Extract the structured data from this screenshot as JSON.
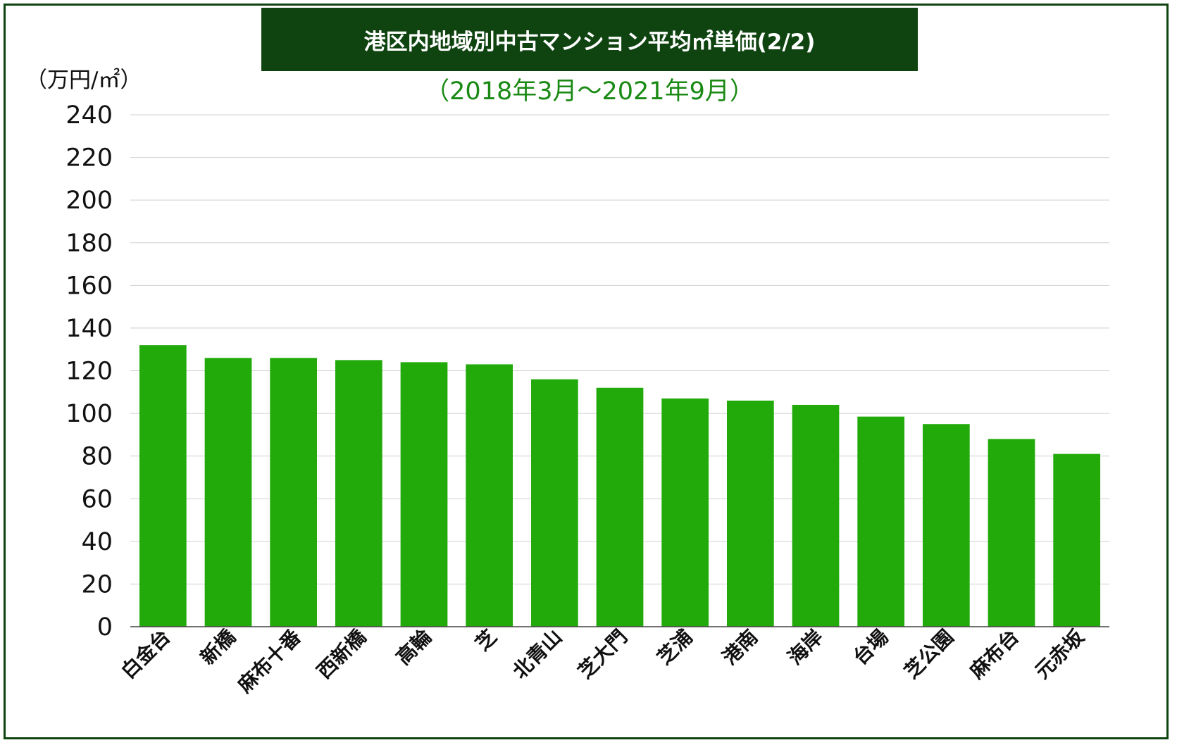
{
  "title": "港区内地域別中古マンション平均㎡単価(2/2)",
  "subtitle": "（2018年3月〜2021年9月）",
  "unit_label": "（万円/㎡）",
  "colors": {
    "frame": "#0f4411",
    "title_bg": "#0f4411",
    "subtitle_text": "#1a8a14",
    "bar": "#22aa0b",
    "grid": "#cfcfcf"
  },
  "chart_data": {
    "type": "bar",
    "title": "港区内地域別中古マンション平均㎡単価(2/2)",
    "subtitle": "（2018年3月〜2021年9月）",
    "ylabel": "（万円/㎡）",
    "xlabel": "",
    "ylim": [
      0,
      240
    ],
    "yticks": [
      0,
      20,
      40,
      60,
      80,
      100,
      120,
      140,
      160,
      180,
      200,
      220,
      240
    ],
    "grid": true,
    "legend": "none",
    "categories": [
      "白金台",
      "新橋",
      "麻布十番",
      "西新橋",
      "高輪",
      "芝",
      "北青山",
      "芝大門",
      "芝浦",
      "港南",
      "海岸",
      "台場",
      "芝公園",
      "麻布台",
      "元赤坂"
    ],
    "values": [
      132,
      126,
      126,
      125,
      124,
      123,
      116,
      112,
      107,
      106,
      104,
      98.5,
      95,
      88,
      81
    ]
  }
}
